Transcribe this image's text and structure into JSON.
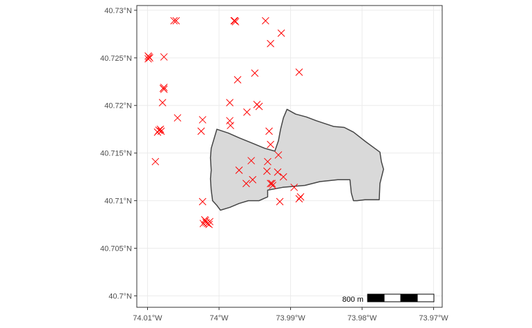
{
  "colors": {
    "grid": "#ebebeb",
    "panel_border": "#333333",
    "polygon_fill": "#d9d9d9",
    "polygon_stroke": "#444444",
    "marker": "#ff0000"
  },
  "chart_data": {
    "type": "scatter",
    "title": "",
    "xlabel": "",
    "ylabel": "",
    "xlim": [
      -74.0115,
      -73.9688
    ],
    "ylim": [
      40.6988,
      40.7305
    ],
    "x_ticks": [
      {
        "value": -74.01,
        "label": "74.01°W"
      },
      {
        "value": -74.0,
        "label": "74°W"
      },
      {
        "value": -73.99,
        "label": "73.99°W"
      },
      {
        "value": -73.98,
        "label": "73.98°W"
      },
      {
        "value": -73.97,
        "label": "73.97°W"
      }
    ],
    "y_ticks": [
      {
        "value": 40.73,
        "label": "40.73°N"
      },
      {
        "value": 40.725,
        "label": "40.725°N"
      },
      {
        "value": 40.72,
        "label": "40.72°N"
      },
      {
        "value": 40.715,
        "label": "40.715°N"
      },
      {
        "value": 40.71,
        "label": "40.71°N"
      },
      {
        "value": 40.705,
        "label": "40.705°N"
      },
      {
        "value": 40.7,
        "label": "40.7°N"
      }
    ],
    "grid": true,
    "polygon": [
      [
        -74.0003,
        40.7175
      ],
      [
        -74.0007,
        40.7165
      ],
      [
        -74.0011,
        40.7155
      ],
      [
        -74.0012,
        40.7145
      ],
      [
        -74.0011,
        40.7132
      ],
      [
        -74.0012,
        40.7123
      ],
      [
        -74.0011,
        40.7111
      ],
      [
        -74.0009,
        40.71
      ],
      [
        -74.0003,
        40.7095
      ],
      [
        -73.9998,
        40.709
      ],
      [
        -73.9985,
        40.7093
      ],
      [
        -73.9972,
        40.7097
      ],
      [
        -73.9959,
        40.71
      ],
      [
        -73.9944,
        40.71
      ],
      [
        -73.9932,
        40.7104
      ],
      [
        -73.9932,
        40.7111
      ],
      [
        -73.9911,
        40.7114
      ],
      [
        -73.988,
        40.7116
      ],
      [
        -73.9859,
        40.712
      ],
      [
        -73.9834,
        40.7122
      ],
      [
        -73.9817,
        40.7122
      ],
      [
        -73.9816,
        40.7115
      ],
      [
        -73.9815,
        40.7108
      ],
      [
        -73.9812,
        40.71
      ],
      [
        -73.9807,
        40.71
      ],
      [
        -73.9796,
        40.7101
      ],
      [
        -73.9776,
        40.7101
      ],
      [
        -73.9775,
        40.7118
      ],
      [
        -73.977,
        40.7133
      ],
      [
        -73.9773,
        40.7141
      ],
      [
        -73.9775,
        40.7151
      ],
      [
        -73.9795,
        40.7162
      ],
      [
        -73.9812,
        40.7172
      ],
      [
        -73.9825,
        40.7177
      ],
      [
        -73.984,
        40.7178
      ],
      [
        -73.9852,
        40.7181
      ],
      [
        -73.9864,
        40.7184
      ],
      [
        -73.9878,
        40.7188
      ],
      [
        -73.9893,
        40.7191
      ],
      [
        -73.9905,
        40.7196
      ],
      [
        -73.991,
        40.7187
      ],
      [
        -73.9914,
        40.7175
      ],
      [
        -73.9917,
        40.7163
      ],
      [
        -73.9922,
        40.7152
      ],
      [
        -73.9936,
        40.7155
      ],
      [
        -73.9952,
        40.716
      ],
      [
        -73.9972,
        40.7166
      ],
      [
        -73.9987,
        40.7171
      ]
    ],
    "points": [
      [
        -74.0098,
        40.7251
      ],
      [
        -74.0099,
        40.7249
      ],
      [
        -74.0097,
        40.725
      ],
      [
        -74.0099,
        40.7252
      ],
      [
        -74.0063,
        40.7289
      ],
      [
        -74.006,
        40.7289
      ],
      [
        -73.9978,
        40.7289
      ],
      [
        -73.9979,
        40.7289
      ],
      [
        -73.9977,
        40.7288
      ],
      [
        -73.9935,
        40.7289
      ],
      [
        -73.9913,
        40.7276
      ],
      [
        -73.9928,
        40.7265
      ],
      [
        -74.0077,
        40.7251
      ],
      [
        -73.9888,
        40.7235
      ],
      [
        -73.995,
        40.7234
      ],
      [
        -73.9974,
        40.7227
      ],
      [
        -74.0077,
        40.7219
      ],
      [
        -74.0078,
        40.7218
      ],
      [
        -74.0077,
        40.7217
      ],
      [
        -74.0079,
        40.7203
      ],
      [
        -73.9985,
        40.7203
      ],
      [
        -73.9947,
        40.7201
      ],
      [
        -73.9944,
        40.7199
      ],
      [
        -73.9961,
        40.7193
      ],
      [
        -74.0058,
        40.7187
      ],
      [
        -74.0023,
        40.7185
      ],
      [
        -73.9985,
        40.7184
      ],
      [
        -73.9984,
        40.7179
      ],
      [
        -74.0082,
        40.7175
      ],
      [
        -74.0086,
        40.7172
      ],
      [
        -74.0084,
        40.7174
      ],
      [
        -74.0081,
        40.7173
      ],
      [
        -74.0025,
        40.7173
      ],
      [
        -73.993,
        40.7173
      ],
      [
        -73.9928,
        40.7159
      ],
      [
        -73.9917,
        40.7148
      ],
      [
        -73.9955,
        40.7142
      ],
      [
        -73.9932,
        40.7141
      ],
      [
        -74.0089,
        40.7141
      ],
      [
        -73.9972,
        40.7132
      ],
      [
        -73.9933,
        40.7131
      ],
      [
        -73.9918,
        40.713
      ],
      [
        -73.991,
        40.7125
      ],
      [
        -73.9953,
        40.7122
      ],
      [
        -73.9962,
        40.7118
      ],
      [
        -73.9928,
        40.7118
      ],
      [
        -73.9925,
        40.7116
      ],
      [
        -73.9926,
        40.7118
      ],
      [
        -73.9895,
        40.7114
      ],
      [
        -73.9886,
        40.7104
      ],
      [
        -73.9888,
        40.7102
      ],
      [
        -73.9915,
        40.7099
      ],
      [
        -74.0023,
        40.7099
      ],
      [
        -74.002,
        40.708
      ],
      [
        -74.0018,
        40.7077
      ],
      [
        -74.0016,
        40.7076
      ],
      [
        -74.0013,
        40.7078
      ],
      [
        -74.0014,
        40.7075
      ],
      [
        -74.0022,
        40.7076
      ],
      [
        -74.0019,
        40.7079
      ]
    ]
  },
  "scale_bar": {
    "label": "800 m",
    "segments": 4
  }
}
